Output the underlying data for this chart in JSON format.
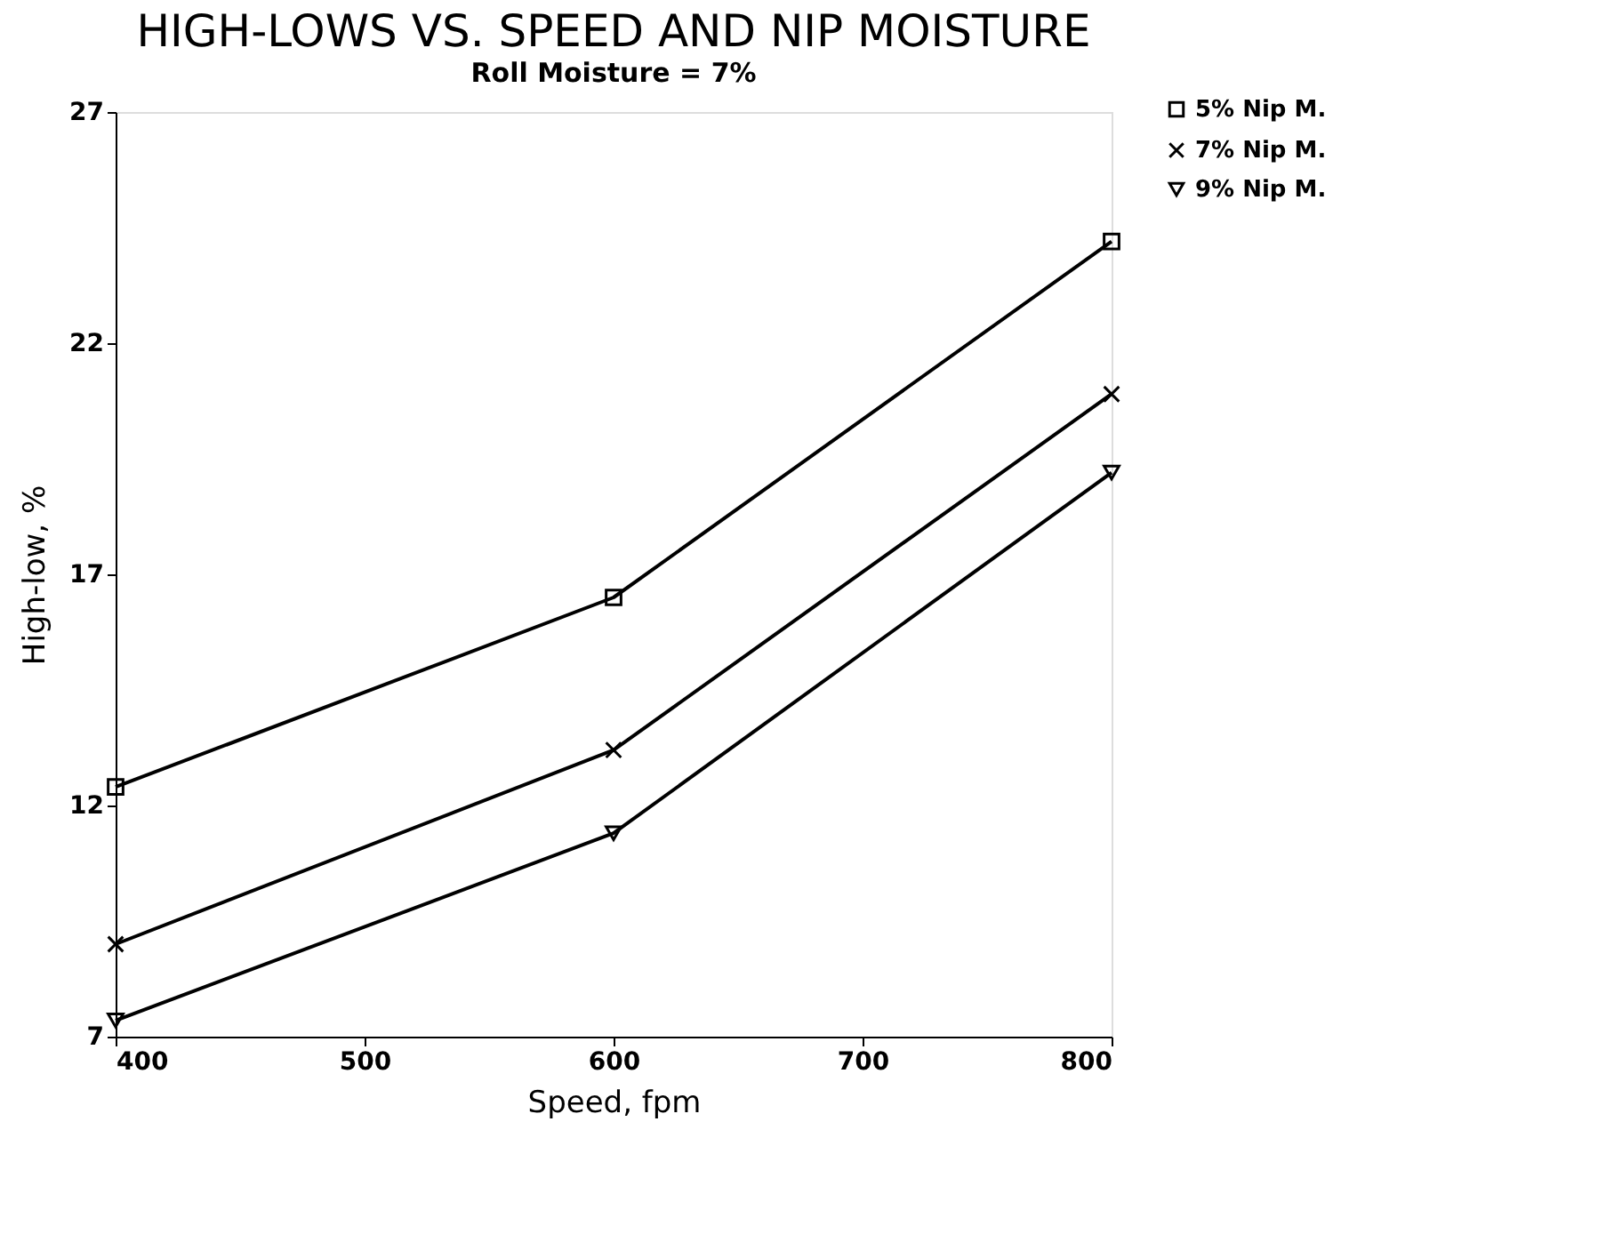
{
  "chart_data": {
    "type": "line",
    "title": "HIGH-LOWS VS. SPEED AND NIP MOISTURE",
    "subtitle": "Roll Moisture = 7%",
    "xlabel": "Speed, fpm",
    "ylabel": "High-low, %",
    "x": [
      400,
      600,
      800
    ],
    "series": [
      {
        "name": "5% Nip M.",
        "color": "#000000",
        "marker": "square",
        "values": [
          12.4,
          16.5,
          24.2
        ]
      },
      {
        "name": "7% Nip M.",
        "color": "#000000",
        "marker": "cross",
        "values": [
          9.0,
          13.2,
          20.9
        ]
      },
      {
        "name": "9% Nip M.",
        "color": "#000000",
        "marker": "triangle",
        "values": [
          7.35,
          11.4,
          19.2
        ]
      }
    ],
    "xlim": [
      400,
      800
    ],
    "xticks": [
      400,
      500,
      600,
      700,
      800
    ],
    "ylim": [
      7,
      27
    ],
    "yticks": [
      7,
      12,
      17,
      22,
      27
    ],
    "grid": false,
    "legend": "top right",
    "line_style": "solid"
  }
}
